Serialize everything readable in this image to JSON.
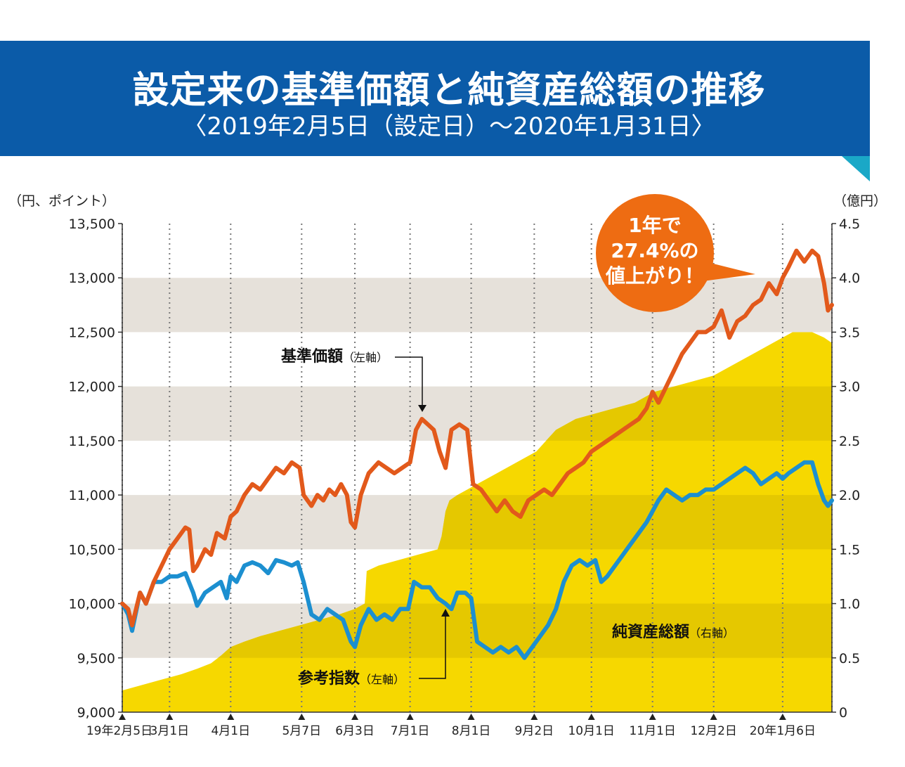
{
  "header": {
    "title": "設定来の基準価額と純資産総額の推移",
    "subtitle": "〈2019年2月5日（設定日）〜2020年1月31日〉"
  },
  "colors": {
    "banner": "#0b5ba8",
    "banner_accent": "#1aa8c7",
    "nav": "#e2591b",
    "index": "#1c8fd0",
    "assets": "#f6d800",
    "assets_shade": "#e5c800",
    "band": "#e6e1da",
    "callout": "#ee6c12"
  },
  "callout": {
    "lines": [
      "1年で",
      "27.4%の",
      "値上がり！"
    ]
  },
  "chart_data": {
    "type": "line",
    "title": "設定来の基準価額と純資産総額の推移",
    "y_left_unit": "（円、ポイント）",
    "y_right_unit": "（億円）",
    "ylim_left": [
      9000,
      13500
    ],
    "ylim_right": [
      0,
      4.5
    ],
    "yticks_left": [
      "13,500",
      "13,000",
      "12,500",
      "12,000",
      "11,500",
      "11,000",
      "10,500",
      "10,000",
      "9,500",
      "9,000"
    ],
    "yticks_right": [
      "4.5",
      "4.0",
      "3.5",
      "3.0",
      "2.5",
      "2.0",
      "1.5",
      "1.0",
      "0.5",
      "0"
    ],
    "x_tick_labels": [
      "19年2月5日",
      "3月1日",
      "4月1日",
      "5月7日",
      "6月3日",
      "7月1日",
      "8月1日",
      "9月2日",
      "10月1日",
      "11月1日",
      "12月2日",
      "20年1月6日"
    ],
    "x_tick_days": [
      0,
      24,
      55,
      91,
      118,
      146,
      177,
      209,
      238,
      269,
      300,
      335
    ],
    "x_range_days": [
      0,
      360
    ],
    "series": [
      {
        "name": "基準価額",
        "label": "基準価額",
        "axis_note": "（左軸）",
        "axis": "left",
        "points": [
          [
            0,
            10000
          ],
          [
            3,
            9950
          ],
          [
            5,
            9800
          ],
          [
            9,
            10100
          ],
          [
            12,
            10000
          ],
          [
            16,
            10200
          ],
          [
            20,
            10350
          ],
          [
            24,
            10500
          ],
          [
            28,
            10600
          ],
          [
            32,
            10700
          ],
          [
            34,
            10680
          ],
          [
            36,
            10300
          ],
          [
            38,
            10350
          ],
          [
            42,
            10500
          ],
          [
            45,
            10450
          ],
          [
            48,
            10650
          ],
          [
            52,
            10600
          ],
          [
            55,
            10800
          ],
          [
            58,
            10850
          ],
          [
            62,
            11000
          ],
          [
            66,
            11100
          ],
          [
            70,
            11050
          ],
          [
            74,
            11150
          ],
          [
            78,
            11250
          ],
          [
            82,
            11200
          ],
          [
            86,
            11300
          ],
          [
            90,
            11250
          ],
          [
            92,
            11000
          ],
          [
            96,
            10900
          ],
          [
            99,
            11000
          ],
          [
            102,
            10950
          ],
          [
            105,
            11050
          ],
          [
            108,
            11000
          ],
          [
            111,
            11100
          ],
          [
            114,
            11000
          ],
          [
            116,
            10750
          ],
          [
            118,
            10700
          ],
          [
            121,
            11000
          ],
          [
            125,
            11200
          ],
          [
            130,
            11300
          ],
          [
            134,
            11250
          ],
          [
            138,
            11200
          ],
          [
            142,
            11250
          ],
          [
            146,
            11300
          ],
          [
            149,
            11600
          ],
          [
            152,
            11700
          ],
          [
            155,
            11650
          ],
          [
            158,
            11600
          ],
          [
            161,
            11400
          ],
          [
            164,
            11250
          ],
          [
            167,
            11600
          ],
          [
            171,
            11650
          ],
          [
            175,
            11600
          ],
          [
            178,
            11100
          ],
          [
            182,
            11050
          ],
          [
            186,
            10950
          ],
          [
            190,
            10850
          ],
          [
            194,
            10950
          ],
          [
            198,
            10850
          ],
          [
            202,
            10800
          ],
          [
            206,
            10950
          ],
          [
            210,
            11000
          ],
          [
            214,
            11050
          ],
          [
            218,
            11000
          ],
          [
            222,
            11100
          ],
          [
            226,
            11200
          ],
          [
            230,
            11250
          ],
          [
            234,
            11300
          ],
          [
            238,
            11400
          ],
          [
            242,
            11450
          ],
          [
            246,
            11500
          ],
          [
            250,
            11550
          ],
          [
            254,
            11600
          ],
          [
            258,
            11650
          ],
          [
            262,
            11700
          ],
          [
            266,
            11800
          ],
          [
            269,
            11950
          ],
          [
            272,
            11850
          ],
          [
            276,
            12000
          ],
          [
            280,
            12150
          ],
          [
            284,
            12300
          ],
          [
            288,
            12400
          ],
          [
            292,
            12500
          ],
          [
            296,
            12500
          ],
          [
            300,
            12550
          ],
          [
            304,
            12700
          ],
          [
            308,
            12450
          ],
          [
            312,
            12600
          ],
          [
            316,
            12650
          ],
          [
            320,
            12750
          ],
          [
            324,
            12800
          ],
          [
            328,
            12950
          ],
          [
            332,
            12850
          ],
          [
            335,
            13000
          ],
          [
            338,
            13100
          ],
          [
            342,
            13250
          ],
          [
            346,
            13150
          ],
          [
            350,
            13250
          ],
          [
            353,
            13200
          ],
          [
            356,
            12950
          ],
          [
            358,
            12700
          ],
          [
            360,
            12750
          ]
        ]
      },
      {
        "name": "参考指数",
        "label": "参考指数",
        "axis_note": "（左軸）",
        "axis": "left",
        "points": [
          [
            0,
            10000
          ],
          [
            3,
            9900
          ],
          [
            5,
            9750
          ],
          [
            9,
            10100
          ],
          [
            12,
            10000
          ],
          [
            16,
            10200
          ],
          [
            20,
            10200
          ],
          [
            24,
            10250
          ],
          [
            28,
            10250
          ],
          [
            32,
            10280
          ],
          [
            36,
            10100
          ],
          [
            38,
            9980
          ],
          [
            42,
            10100
          ],
          [
            46,
            10150
          ],
          [
            50,
            10200
          ],
          [
            53,
            10050
          ],
          [
            55,
            10250
          ],
          [
            58,
            10200
          ],
          [
            62,
            10350
          ],
          [
            66,
            10380
          ],
          [
            70,
            10350
          ],
          [
            74,
            10280
          ],
          [
            78,
            10400
          ],
          [
            82,
            10380
          ],
          [
            86,
            10350
          ],
          [
            89,
            10380
          ],
          [
            92,
            10200
          ],
          [
            96,
            9900
          ],
          [
            100,
            9850
          ],
          [
            104,
            9950
          ],
          [
            108,
            9900
          ],
          [
            112,
            9850
          ],
          [
            116,
            9650
          ],
          [
            118,
            9600
          ],
          [
            121,
            9800
          ],
          [
            125,
            9950
          ],
          [
            129,
            9850
          ],
          [
            133,
            9900
          ],
          [
            137,
            9850
          ],
          [
            141,
            9950
          ],
          [
            145,
            9950
          ],
          [
            148,
            10200
          ],
          [
            152,
            10150
          ],
          [
            156,
            10150
          ],
          [
            160,
            10050
          ],
          [
            164,
            10000
          ],
          [
            167,
            9950
          ],
          [
            170,
            10100
          ],
          [
            174,
            10100
          ],
          [
            177,
            10050
          ],
          [
            180,
            9650
          ],
          [
            184,
            9600
          ],
          [
            188,
            9550
          ],
          [
            192,
            9600
          ],
          [
            196,
            9550
          ],
          [
            200,
            9600
          ],
          [
            204,
            9500
          ],
          [
            208,
            9600
          ],
          [
            212,
            9700
          ],
          [
            216,
            9800
          ],
          [
            220,
            9950
          ],
          [
            224,
            10200
          ],
          [
            228,
            10350
          ],
          [
            232,
            10400
          ],
          [
            236,
            10350
          ],
          [
            240,
            10400
          ],
          [
            243,
            10200
          ],
          [
            246,
            10250
          ],
          [
            250,
            10350
          ],
          [
            254,
            10450
          ],
          [
            258,
            10550
          ],
          [
            262,
            10650
          ],
          [
            266,
            10750
          ],
          [
            269,
            10850
          ],
          [
            272,
            10950
          ],
          [
            276,
            11050
          ],
          [
            280,
            11000
          ],
          [
            284,
            10950
          ],
          [
            288,
            11000
          ],
          [
            292,
            11000
          ],
          [
            296,
            11050
          ],
          [
            300,
            11050
          ],
          [
            304,
            11100
          ],
          [
            308,
            11150
          ],
          [
            312,
            11200
          ],
          [
            316,
            11250
          ],
          [
            320,
            11200
          ],
          [
            324,
            11100
          ],
          [
            328,
            11150
          ],
          [
            332,
            11200
          ],
          [
            335,
            11150
          ],
          [
            338,
            11200
          ],
          [
            342,
            11250
          ],
          [
            346,
            11300
          ],
          [
            350,
            11300
          ],
          [
            353,
            11100
          ],
          [
            356,
            10950
          ],
          [
            358,
            10900
          ],
          [
            360,
            10950
          ]
        ]
      },
      {
        "name": "純資産総額",
        "label": "純資産総額",
        "axis_note": "（右軸）",
        "axis": "right",
        "type": "area",
        "points": [
          [
            0,
            0.2
          ],
          [
            10,
            0.25
          ],
          [
            20,
            0.3
          ],
          [
            30,
            0.35
          ],
          [
            38,
            0.4
          ],
          [
            45,
            0.45
          ],
          [
            50,
            0.52
          ],
          [
            55,
            0.6
          ],
          [
            62,
            0.65
          ],
          [
            70,
            0.7
          ],
          [
            80,
            0.75
          ],
          [
            90,
            0.8
          ],
          [
            100,
            0.85
          ],
          [
            110,
            0.9
          ],
          [
            118,
            0.95
          ],
          [
            123,
            1.0
          ],
          [
            124,
            1.3
          ],
          [
            130,
            1.35
          ],
          [
            140,
            1.4
          ],
          [
            150,
            1.45
          ],
          [
            160,
            1.5
          ],
          [
            162,
            1.62
          ],
          [
            164,
            1.85
          ],
          [
            166,
            1.95
          ],
          [
            170,
            2.0
          ],
          [
            180,
            2.1
          ],
          [
            190,
            2.2
          ],
          [
            200,
            2.3
          ],
          [
            210,
            2.4
          ],
          [
            215,
            2.5
          ],
          [
            220,
            2.6
          ],
          [
            230,
            2.7
          ],
          [
            240,
            2.75
          ],
          [
            250,
            2.8
          ],
          [
            260,
            2.85
          ],
          [
            270,
            2.95
          ],
          [
            280,
            3.0
          ],
          [
            290,
            3.05
          ],
          [
            300,
            3.1
          ],
          [
            310,
            3.2
          ],
          [
            320,
            3.3
          ],
          [
            330,
            3.4
          ],
          [
            340,
            3.5
          ],
          [
            350,
            3.5
          ],
          [
            356,
            3.45
          ],
          [
            360,
            3.4
          ]
        ]
      }
    ],
    "grid": true,
    "legend": "inline labels"
  }
}
